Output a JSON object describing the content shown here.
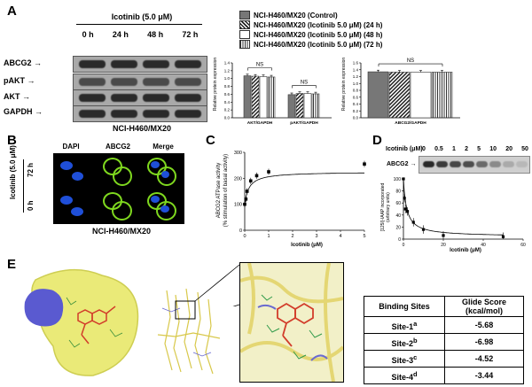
{
  "panel_labels": {
    "a": "A",
    "b": "B",
    "c": "C",
    "d": "D",
    "e": "E"
  },
  "panelA": {
    "treatment_header": "Icotinib (5.0 μM)",
    "times": [
      "0 h",
      "24 h",
      "48 h",
      "72 h"
    ],
    "rows": [
      "ABCG2",
      "pAKT",
      "AKT",
      "GAPDH"
    ],
    "cell_line": "NCI-H460/MX20",
    "legend": [
      "NCI-H460/MX20 (Control)",
      "NCI-H460/MX20 (Icotinib 5.0 μM) (24 h)",
      "NCI-H460/MX20 (Icotinib 5.0 μM) (48 h)",
      "NCI-H460/MX20 (Icotinib 5.0 μM) (72 h)"
    ],
    "ns_label": "NS",
    "ylabel": "Relative protein expression"
  },
  "chart_data": [
    {
      "type": "bar",
      "categories": [
        "AKT/GAPDH",
        "pAKT/GAPDH"
      ],
      "series": [
        {
          "name": "NCI-H460/MX20 (Control)",
          "values": [
            1.07,
            0.59
          ]
        },
        {
          "name": "NCI-H460/MX20 (Icotinib 5.0 μM) (24 h)",
          "values": [
            1.06,
            0.62
          ]
        },
        {
          "name": "NCI-H460/MX20 (Icotinib 5.0 μM) (48 h)",
          "values": [
            1.05,
            0.62
          ]
        },
        {
          "name": "NCI-H460/MX20 (Icotinib 5.0 μM) (72 h)",
          "values": [
            1.04,
            0.61
          ]
        }
      ],
      "ylabel": "Relative protein expression",
      "ylim": [
        0,
        1.4
      ],
      "yticks": [
        "0.0",
        "0.2",
        "0.4",
        "0.6",
        "0.8",
        "1.0",
        "1.2",
        "1.4"
      ]
    },
    {
      "type": "bar",
      "categories": [
        "ABCG2/GAPDH"
      ],
      "series": [
        {
          "name": "NCI-H460/MX20 (Control)",
          "values": [
            1.34
          ]
        },
        {
          "name": "NCI-H460/MX20 (Icotinib 5.0 μM) (24 h)",
          "values": [
            1.33
          ]
        },
        {
          "name": "NCI-H460/MX20 (Icotinib 5.0 μM) (48 h)",
          "values": [
            1.33
          ]
        },
        {
          "name": "NCI-H460/MX20 (Icotinib 5.0 μM) (72 h)",
          "values": [
            1.33
          ]
        }
      ],
      "ylabel": "Relative protein expression",
      "ylim": [
        0,
        1.6
      ],
      "yticks": [
        "0.0",
        "0.2",
        "0.4",
        "0.6",
        "0.8",
        "1.0",
        "1.2",
        "1.4",
        "1.6"
      ]
    },
    {
      "type": "scatter",
      "x": [
        0,
        0.05,
        0.1,
        0.25,
        0.5,
        1,
        5
      ],
      "y": [
        100,
        120,
        150,
        190,
        210,
        225,
        255
      ],
      "xlabel": "Icotinib (μM)",
      "ylabel": "ABCG2 ATPase activity (% stimulation of basal activity)",
      "xlim": [
        0,
        5
      ],
      "ylim": [
        0,
        300
      ],
      "xticks": [
        "0",
        "1",
        "2",
        "3",
        "4",
        "5"
      ],
      "yticks": [
        "0",
        "100",
        "200",
        "300"
      ]
    },
    {
      "type": "scatter",
      "x": [
        0,
        0.5,
        1,
        2,
        5,
        10,
        20,
        50
      ],
      "y": [
        100,
        68,
        50,
        46,
        28,
        16,
        6,
        4
      ],
      "xlabel": "Icotinib (μM)",
      "ylabel": "[125I]-IAAP incorporated (arbitrary units)",
      "xlim": [
        0,
        60
      ],
      "ylim": [
        0,
        100
      ],
      "xticks": [
        "0",
        "20",
        "40",
        "60"
      ],
      "yticks": [
        "0",
        "20",
        "40",
        "60",
        "80",
        "100"
      ]
    }
  ],
  "panelB": {
    "headers": [
      "DAPI",
      "ABCG2",
      "Merge"
    ],
    "rows": [
      "72 h",
      "0 h"
    ],
    "side_label": "Icotinib (5.0 μM)",
    "cell_line": "NCI-H460/MX20"
  },
  "panelD": {
    "conc_label": "Icotinib (μM)",
    "conc": [
      "0",
      "0.5",
      "1",
      "2",
      "5",
      "10",
      "20",
      "50"
    ],
    "band_label": "ABCG2",
    "ylabel_line1": "[125I]-IAAP incorporated",
    "ylabel_line2": "(arbitrary units)"
  },
  "panelE": {
    "table_headers": [
      "Binding Sites",
      "Glide Score (kcal/mol)"
    ],
    "header2_line1": "Glide Score",
    "header2_line2": "(kcal/mol)",
    "sites": [
      {
        "site": "Site-1",
        "sup": "a",
        "score": "-5.68"
      },
      {
        "site": "Site-2",
        "sup": "b",
        "score": "-6.98"
      },
      {
        "site": "Site-3",
        "sup": "c",
        "score": "-4.52"
      },
      {
        "site": "Site-4",
        "sup": "d",
        "score": "-3.44"
      }
    ]
  },
  "colors": {
    "blot_bg": "#a9a9a9",
    "dapi": "#1f4fd8",
    "abcg2": "#7fd81f",
    "surface": "#e8e86a",
    "pocket": "#5a5ad0"
  }
}
